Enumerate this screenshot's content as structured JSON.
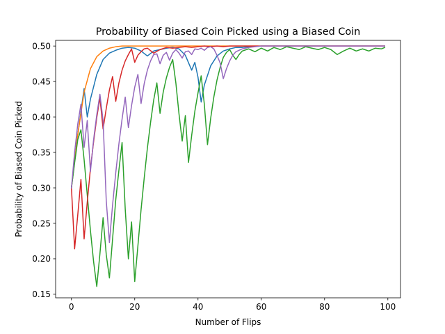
{
  "chart_data": {
    "type": "line",
    "title": "Probability of Biased Coin Picked using a Biased Coin",
    "xlabel": "Number of Flips",
    "ylabel": "Probability of Biased Coin Picked",
    "xlim": [
      -5,
      104
    ],
    "ylim": [
      0.145,
      0.508
    ],
    "xticks": [
      0,
      20,
      40,
      60,
      80,
      100
    ],
    "yticks": [
      0.15,
      0.2,
      0.25,
      0.3,
      0.35,
      0.4,
      0.45,
      0.5
    ],
    "ytick_labels": [
      "0.15",
      "0.20",
      "0.25",
      "0.30",
      "0.35",
      "0.40",
      "0.45",
      "0.50"
    ],
    "grid": false,
    "legend": "none",
    "series": [
      {
        "color": "#1f77b4",
        "x": [
          0,
          2,
          4,
          5,
          6,
          8,
          10,
          12,
          14,
          16,
          18,
          20,
          22,
          24,
          26,
          28,
          30,
          32,
          34,
          36,
          38,
          39,
          40,
          41,
          42,
          44,
          46,
          48,
          50,
          52,
          54,
          56,
          60,
          70,
          80,
          90,
          99
        ],
        "y": [
          0.3,
          0.375,
          0.44,
          0.4,
          0.425,
          0.46,
          0.481,
          0.49,
          0.494,
          0.497,
          0.498,
          0.497,
          0.493,
          0.486,
          0.493,
          0.495,
          0.497,
          0.498,
          0.496,
          0.487,
          0.466,
          0.477,
          0.456,
          0.421,
          0.445,
          0.472,
          0.486,
          0.493,
          0.496,
          0.498,
          0.498,
          0.499,
          0.5,
          0.5,
          0.5,
          0.5,
          0.5
        ]
      },
      {
        "color": "#ff7f0e",
        "x": [
          0,
          2,
          4,
          6,
          8,
          10,
          12,
          14,
          16,
          18,
          20,
          25,
          30,
          40,
          50,
          60,
          70,
          80,
          90,
          99
        ],
        "y": [
          0.3,
          0.375,
          0.435,
          0.468,
          0.485,
          0.493,
          0.497,
          0.499,
          0.5,
          0.5,
          0.5,
          0.5,
          0.5,
          0.5,
          0.5,
          0.5,
          0.5,
          0.5,
          0.5,
          0.5
        ]
      },
      {
        "color": "#2ca02c",
        "x": [
          0,
          1,
          2,
          3,
          4,
          5,
          6,
          7,
          8,
          9,
          10,
          11,
          12,
          13,
          14,
          15,
          16,
          17,
          18,
          19,
          20,
          21,
          22,
          23,
          24,
          25,
          26,
          27,
          28,
          29,
          30,
          31,
          32,
          33,
          34,
          35,
          36,
          37,
          38,
          39,
          40,
          41,
          42,
          43,
          44,
          45,
          46,
          47,
          48,
          49,
          50,
          51,
          52,
          53,
          54,
          56,
          58,
          60,
          62,
          64,
          66,
          68,
          70,
          72,
          74,
          76,
          78,
          80,
          82,
          84,
          86,
          88,
          90,
          92,
          94,
          96,
          98,
          99
        ],
        "y": [
          0.3,
          0.335,
          0.368,
          0.382,
          0.34,
          0.29,
          0.24,
          0.196,
          0.161,
          0.207,
          0.258,
          0.206,
          0.173,
          0.228,
          0.283,
          0.325,
          0.364,
          0.27,
          0.2,
          0.252,
          0.168,
          0.218,
          0.269,
          0.314,
          0.356,
          0.392,
          0.424,
          0.448,
          0.405,
          0.435,
          0.455,
          0.47,
          0.481,
          0.448,
          0.404,
          0.366,
          0.402,
          0.336,
          0.374,
          0.408,
          0.434,
          0.458,
          0.418,
          0.361,
          0.398,
          0.428,
          0.452,
          0.47,
          0.484,
          0.491,
          0.495,
          0.487,
          0.481,
          0.488,
          0.493,
          0.496,
          0.492,
          0.497,
          0.493,
          0.498,
          0.495,
          0.499,
          0.497,
          0.495,
          0.499,
          0.497,
          0.495,
          0.498,
          0.495,
          0.488,
          0.493,
          0.497,
          0.493,
          0.496,
          0.493,
          0.497,
          0.496,
          0.498
        ]
      },
      {
        "color": "#d62728",
        "x": [
          0,
          1,
          2,
          3,
          4,
          5,
          6,
          7,
          8,
          9,
          10,
          11,
          12,
          13,
          14,
          15,
          16,
          17,
          18,
          19,
          20,
          21,
          22,
          23,
          24,
          26,
          28,
          30,
          32,
          34,
          36,
          38,
          40,
          42,
          44,
          46,
          48,
          50,
          55,
          60,
          70,
          80,
          90,
          99
        ],
        "y": [
          0.3,
          0.214,
          0.262,
          0.312,
          0.228,
          0.28,
          0.327,
          0.365,
          0.399,
          0.427,
          0.383,
          0.412,
          0.438,
          0.457,
          0.422,
          0.448,
          0.466,
          0.479,
          0.488,
          0.496,
          0.477,
          0.487,
          0.492,
          0.496,
          0.497,
          0.49,
          0.495,
          0.498,
          0.497,
          0.498,
          0.499,
          0.498,
          0.499,
          0.5,
          0.499,
          0.5,
          0.499,
          0.5,
          0.5,
          0.5,
          0.5,
          0.5,
          0.5,
          0.5
        ]
      },
      {
        "color": "#9467bd",
        "x": [
          0,
          1,
          2,
          3,
          4,
          5,
          6,
          7,
          8,
          9,
          10,
          11,
          12,
          13,
          14,
          15,
          16,
          17,
          18,
          19,
          20,
          21,
          22,
          23,
          24,
          25,
          26,
          27,
          28,
          29,
          30,
          31,
          32,
          33,
          34,
          35,
          36,
          37,
          38,
          39,
          40,
          41,
          42,
          43,
          44,
          45,
          46,
          47,
          48,
          49,
          50,
          51,
          52,
          54,
          56,
          58,
          60,
          62,
          65,
          70,
          80,
          90,
          99
        ],
        "y": [
          0.3,
          0.35,
          0.39,
          0.418,
          0.357,
          0.395,
          0.323,
          0.368,
          0.403,
          0.432,
          0.395,
          0.282,
          0.223,
          0.276,
          0.321,
          0.362,
          0.397,
          0.428,
          0.385,
          0.416,
          0.442,
          0.46,
          0.419,
          0.447,
          0.466,
          0.479,
          0.488,
          0.489,
          0.475,
          0.487,
          0.491,
          0.48,
          0.49,
          0.495,
          0.49,
          0.483,
          0.492,
          0.493,
          0.488,
          0.496,
          0.495,
          0.497,
          0.494,
          0.498,
          0.499,
          0.496,
          0.487,
          0.476,
          0.454,
          0.468,
          0.479,
          0.487,
          0.492,
          0.496,
          0.498,
          0.499,
          0.5,
          0.5,
          0.5,
          0.5,
          0.5,
          0.5,
          0.5
        ]
      }
    ]
  }
}
